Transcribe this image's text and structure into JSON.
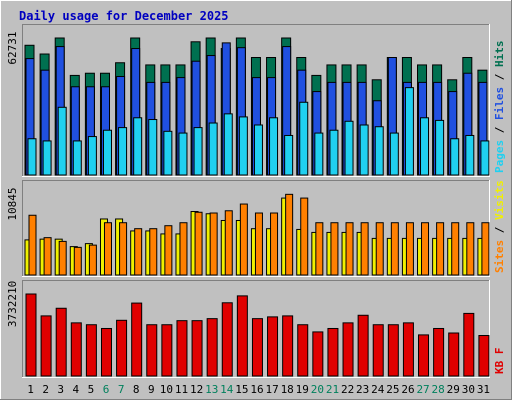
{
  "title": "Daily usage for December 2025",
  "colors": {
    "background": "#c0c0c0",
    "panel": "#c0c0c0",
    "title": "#0000c0",
    "hits": "#007050",
    "files": "#2050e0",
    "pages": "#20d0f0",
    "visits": "#f0f000",
    "sites": "#ff8000",
    "kbytes": "#e00000",
    "weekend": "#00805c",
    "weekday": "#000000"
  },
  "chart_data": [
    {
      "type": "bar",
      "name": "pages-files-hits",
      "y_max_label": "62731",
      "ylim": [
        0,
        62731
      ],
      "legend": [
        {
          "label": "Pages",
          "color": "#20d0f0"
        },
        {
          "label": "Files",
          "color": "#2050e0"
        },
        {
          "label": "Hits",
          "color": "#007050"
        }
      ],
      "categories": [
        "1",
        "2",
        "3",
        "4",
        "5",
        "6",
        "7",
        "8",
        "9",
        "10",
        "11",
        "12",
        "13",
        "14",
        "15",
        "16",
        "17",
        "18",
        "19",
        "20",
        "21",
        "22",
        "23",
        "24",
        "25",
        "26",
        "27",
        "28",
        "29",
        "30",
        "31"
      ],
      "series": [
        {
          "name": "Hits",
          "values": [
            59400,
            55400,
            63000,
            45600,
            46600,
            46600,
            51400,
            63000,
            50400,
            50400,
            50400,
            61000,
            63000,
            57900,
            63000,
            53800,
            53800,
            63000,
            53800,
            45600,
            50400,
            50400,
            50400,
            43600,
            53800,
            53800,
            50400,
            50400,
            43600,
            53800,
            48000
          ]
        },
        {
          "name": "Files",
          "values": [
            53300,
            48000,
            58800,
            40400,
            40400,
            40400,
            45100,
            57900,
            42400,
            42400,
            44600,
            52100,
            54700,
            60500,
            58300,
            44600,
            44600,
            58800,
            48000,
            38200,
            42400,
            42400,
            42400,
            34000,
            53800,
            42400,
            42400,
            42400,
            38200,
            46600,
            42400
          ]
        },
        {
          "name": "Pages",
          "values": [
            16600,
            15600,
            31000,
            15600,
            17600,
            20500,
            21700,
            26200,
            25400,
            20000,
            19200,
            21700,
            23800,
            28000,
            26600,
            22900,
            26200,
            18100,
            33300,
            19200,
            20500,
            24600,
            22900,
            22100,
            19200,
            40000,
            26200,
            25000,
            16600,
            18100,
            15600
          ]
        }
      ]
    },
    {
      "type": "bar",
      "name": "visits-sites",
      "y_max_label": "10845",
      "ylim": [
        0,
        10845
      ],
      "legend": [
        {
          "label": "Sites",
          "color": "#ff8000"
        },
        {
          "label": "Visits",
          "color": "#f0f000"
        }
      ],
      "categories": [
        "1",
        "2",
        "3",
        "4",
        "5",
        "6",
        "7",
        "8",
        "9",
        "10",
        "11",
        "12",
        "13",
        "14",
        "15",
        "16",
        "17",
        "18",
        "19",
        "20",
        "21",
        "22",
        "23",
        "24",
        "25",
        "26",
        "27",
        "28",
        "29",
        "30",
        "31"
      ],
      "series": [
        {
          "name": "Visits",
          "values": [
            4700,
            4800,
            4800,
            3800,
            4200,
            7500,
            7500,
            5900,
            5900,
            5500,
            5500,
            8500,
            8200,
            7300,
            7300,
            6200,
            6200,
            10300,
            6100,
            5700,
            5700,
            5700,
            5700,
            4900,
            4900,
            4900,
            4900,
            4900,
            4900,
            4900,
            4900
          ]
        },
        {
          "name": "Sites",
          "values": [
            8000,
            5000,
            4500,
            3700,
            4000,
            7000,
            7000,
            6200,
            6200,
            6600,
            7000,
            8400,
            8300,
            8600,
            9500,
            8300,
            8300,
            10800,
            10300,
            7000,
            7000,
            7000,
            7000,
            7000,
            7000,
            7000,
            7000,
            7000,
            7000,
            7000,
            7000
          ]
        }
      ]
    },
    {
      "type": "bar",
      "name": "kbytes",
      "y_max_label": "3732210",
      "ylim": [
        0,
        3732210
      ],
      "legend": [
        {
          "label": "KB F",
          "color": "#e00000"
        }
      ],
      "categories": [
        "1",
        "2",
        "3",
        "4",
        "5",
        "6",
        "7",
        "8",
        "9",
        "10",
        "11",
        "12",
        "13",
        "14",
        "15",
        "16",
        "17",
        "18",
        "19",
        "20",
        "21",
        "22",
        "23",
        "24",
        "25",
        "26",
        "27",
        "28",
        "29",
        "30",
        "31"
      ],
      "series": [
        {
          "name": "KB F",
          "values": [
            3732210,
            2736000,
            3083000,
            2419000,
            2334000,
            2163000,
            2535000,
            3319000,
            2334000,
            2334000,
            2519000,
            2519000,
            2611000,
            3333000,
            3647000,
            2611000,
            2691000,
            2736000,
            2334000,
            2007000,
            2163000,
            2419000,
            2764000,
            2334000,
            2334000,
            2419000,
            1871000,
            2163000,
            1957000,
            2849000,
            1843000
          ]
        }
      ]
    }
  ],
  "x_axis": {
    "labels": [
      "1",
      "2",
      "3",
      "4",
      "5",
      "6",
      "7",
      "8",
      "9",
      "10",
      "11",
      "12",
      "13",
      "14",
      "15",
      "16",
      "17",
      "18",
      "19",
      "20",
      "21",
      "22",
      "23",
      "24",
      "25",
      "26",
      "27",
      "28",
      "29",
      "30",
      "31"
    ],
    "weekend_days": [
      "6",
      "7",
      "13",
      "14",
      "20",
      "21",
      "27",
      "28"
    ]
  }
}
